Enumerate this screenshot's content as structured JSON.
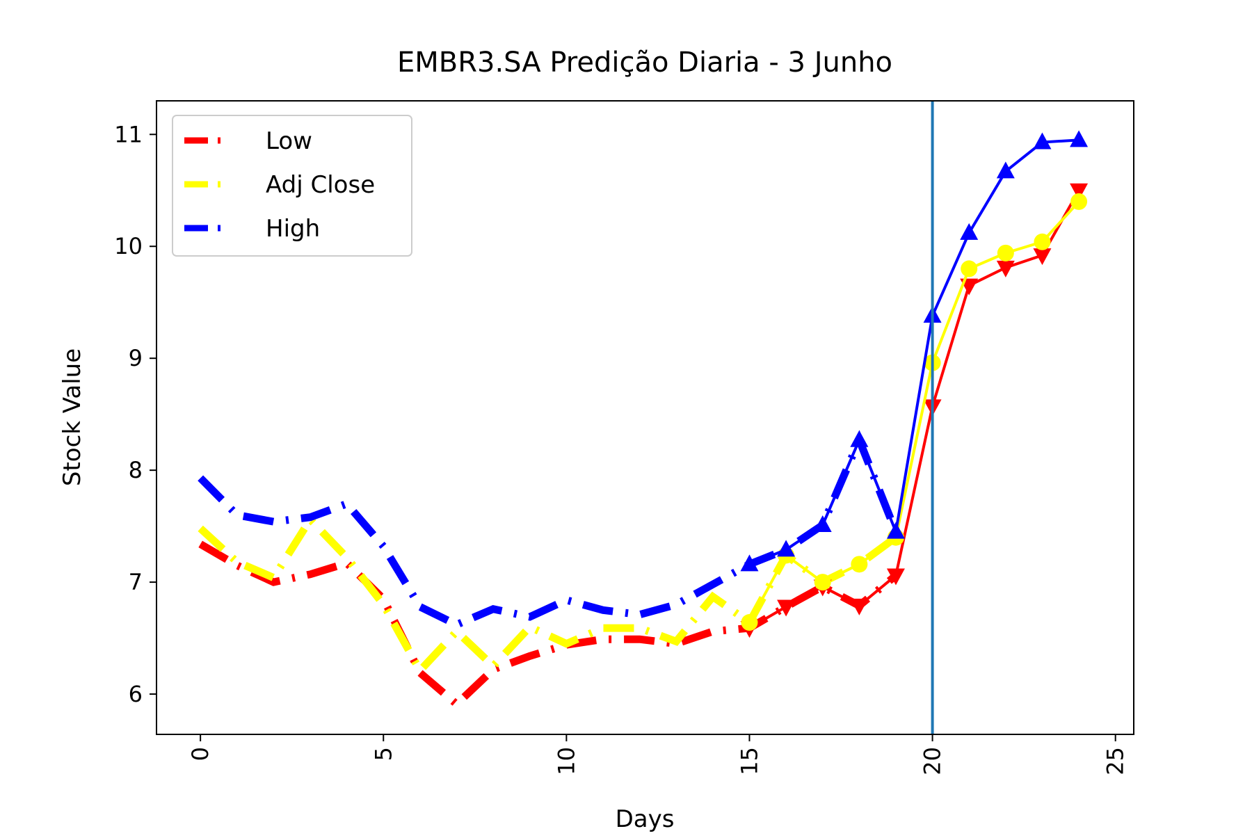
{
  "chart_data": {
    "type": "line",
    "title": "EMBR3.SA Predição Diaria - 3 Junho",
    "xlabel": "Days",
    "ylabel": "Stock Value",
    "xlim": [
      -1.2,
      25.5
    ],
    "ylim": [
      5.64,
      11.3
    ],
    "xticks": [
      0,
      5,
      10,
      15,
      20,
      25
    ],
    "yticks": [
      6,
      7,
      8,
      9,
      10,
      11
    ],
    "grid": false,
    "legend_position": "top-left",
    "vline_x": 20,
    "vline_color": "#1f77b4",
    "series": [
      {
        "name": "Low",
        "color": "#ff0000",
        "marker": "triangle-down",
        "historical": {
          "x": [
            0,
            1,
            2,
            3,
            4,
            5,
            6,
            7,
            8,
            9,
            10,
            11,
            12,
            13,
            14,
            15,
            16,
            17,
            18,
            19
          ],
          "y": [
            7.34,
            7.15,
            7.0,
            7.07,
            7.17,
            6.85,
            6.19,
            5.91,
            6.22,
            6.34,
            6.44,
            6.49,
            6.49,
            6.45,
            6.56,
            6.59,
            6.78,
            6.96,
            6.79,
            7.06
          ]
        },
        "prediction": {
          "x": [
            15,
            16,
            17,
            18,
            19,
            20,
            21,
            22,
            23,
            24
          ],
          "y": [
            6.59,
            6.78,
            6.96,
            6.79,
            7.06,
            8.57,
            9.65,
            9.81,
            9.92,
            10.5
          ]
        }
      },
      {
        "name": "Adj Close",
        "color": "#ffff00",
        "marker": "circle",
        "historical": {
          "x": [
            0,
            1,
            2,
            3,
            4,
            5,
            6,
            7,
            8,
            9,
            10,
            11,
            12,
            13,
            14,
            15,
            16,
            17,
            18,
            19
          ],
          "y": [
            7.48,
            7.18,
            7.04,
            7.56,
            7.22,
            6.8,
            6.21,
            6.56,
            6.25,
            6.6,
            6.45,
            6.59,
            6.59,
            6.47,
            6.87,
            6.64,
            7.24,
            7.0,
            7.16,
            7.4
          ]
        },
        "prediction": {
          "x": [
            15,
            16,
            17,
            18,
            19,
            20,
            21,
            22,
            23,
            24
          ],
          "y": [
            6.64,
            7.24,
            7.0,
            7.16,
            7.4,
            8.96,
            9.8,
            9.94,
            10.04,
            10.4
          ]
        }
      },
      {
        "name": "High",
        "color": "#0000ff",
        "marker": "triangle-up",
        "historical": {
          "x": [
            0,
            1,
            2,
            3,
            4,
            5,
            6,
            7,
            8,
            9,
            10,
            11,
            12,
            13,
            14,
            15,
            16,
            17,
            18,
            19
          ],
          "y": [
            7.93,
            7.6,
            7.54,
            7.58,
            7.7,
            7.32,
            6.78,
            6.62,
            6.76,
            6.69,
            6.84,
            6.75,
            6.71,
            6.8,
            6.98,
            7.16,
            7.29,
            7.51,
            8.27,
            7.45
          ]
        },
        "prediction": {
          "x": [
            15,
            16,
            17,
            18,
            19,
            20,
            21,
            22,
            23,
            24
          ],
          "y": [
            7.16,
            7.29,
            7.51,
            8.27,
            7.45,
            9.38,
            10.12,
            10.67,
            10.93,
            10.95
          ]
        }
      }
    ]
  }
}
